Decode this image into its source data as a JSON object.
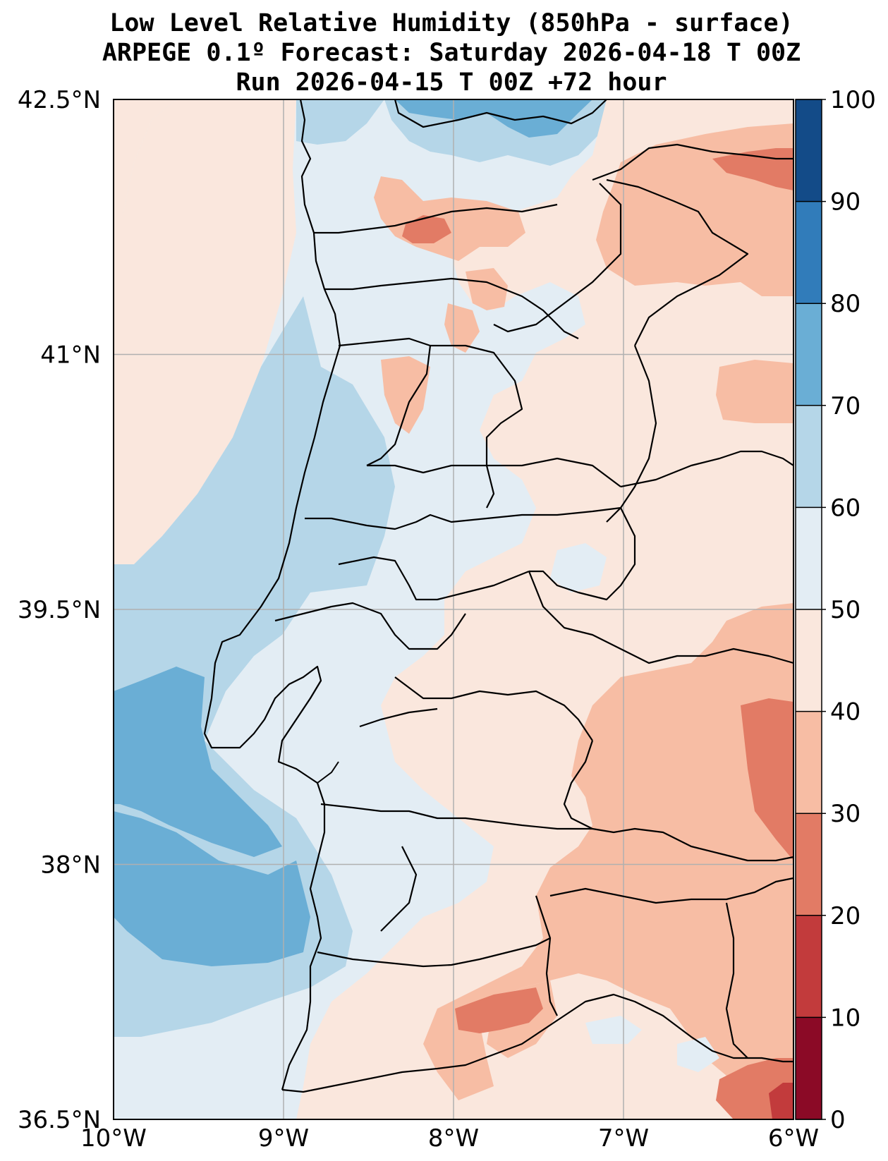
{
  "title": {
    "line1": "Low Level Relative Humidity (850hPa - surface)",
    "line2": "ARPEGE 0.1º Forecast: Saturday 2026-04-18 T 00Z",
    "line3": "Run 2026-04-15 T 00Z +72 hour"
  },
  "map": {
    "lon_range": [
      -10,
      -6
    ],
    "lat_range": [
      36.5,
      42.5
    ],
    "x_ticks": [
      {
        "lon": -10,
        "label": "10°W"
      },
      {
        "lon": -9,
        "label": "9°W"
      },
      {
        "lon": -8,
        "label": "8°W"
      },
      {
        "lon": -7,
        "label": "7°W"
      },
      {
        "lon": -6,
        "label": "6°W"
      }
    ],
    "y_ticks": [
      {
        "lat": 42.5,
        "label": "42.5°N"
      },
      {
        "lat": 41,
        "label": "41°N"
      },
      {
        "lat": 39.5,
        "label": "39.5°N"
      },
      {
        "lat": 38,
        "label": "38°N"
      },
      {
        "lat": 36.5,
        "label": "36.5°N"
      }
    ]
  },
  "colorbar": {
    "levels": [
      0,
      10,
      20,
      30,
      40,
      50,
      60,
      70,
      80,
      90,
      100
    ],
    "labels": [
      "0",
      "10",
      "20",
      "30",
      "40",
      "50",
      "60",
      "70",
      "80",
      "90",
      "100"
    ],
    "colors": [
      "#8b0a26",
      "#c23b3c",
      "#e27b65",
      "#f7bda4",
      "#fae7dd",
      "#e3edf4",
      "#b5d6e8",
      "#6aaed5",
      "#317cba",
      "#134b88"
    ]
  },
  "colors": {
    "grid": "#b0b0b0",
    "border": "#000000"
  }
}
